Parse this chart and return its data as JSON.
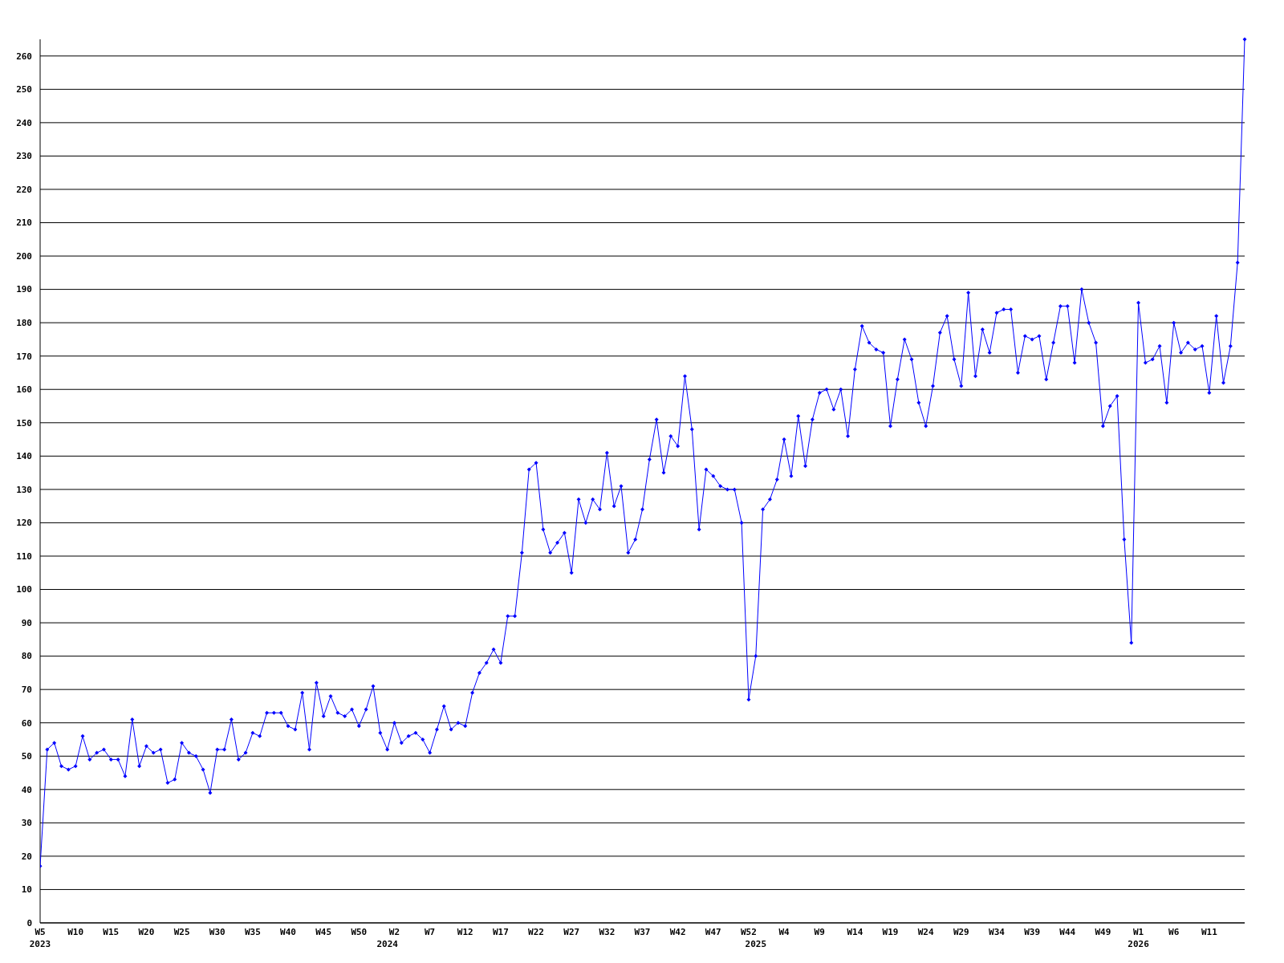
{
  "chart_data": {
    "type": "line",
    "categories": [
      "W5\n2023",
      null,
      null,
      null,
      null,
      "W10",
      null,
      null,
      null,
      null,
      "W15",
      null,
      null,
      null,
      null,
      "W20",
      null,
      null,
      null,
      null,
      "W25",
      null,
      null,
      null,
      null,
      "W30",
      null,
      null,
      null,
      null,
      "W35",
      null,
      null,
      null,
      null,
      "W40",
      null,
      null,
      null,
      null,
      "W45",
      null,
      null,
      null,
      null,
      "W50",
      null,
      null,
      null,
      "\n2024",
      "W2",
      null,
      null,
      null,
      null,
      "W7",
      null,
      null,
      null,
      null,
      "W12",
      null,
      null,
      null,
      null,
      "W17",
      null,
      null,
      null,
      null,
      "W22",
      null,
      null,
      null,
      null,
      "W27",
      null,
      null,
      null,
      null,
      "W32",
      null,
      null,
      null,
      null,
      "W37",
      null,
      null,
      null,
      null,
      "W42",
      null,
      null,
      null,
      null,
      "W47",
      null,
      null,
      null,
      null,
      "W52",
      "\n2025",
      null,
      null,
      null,
      "W4",
      null,
      null,
      null,
      null,
      "W9",
      null,
      null,
      null,
      null,
      "W14",
      null,
      null,
      null,
      null,
      "W19",
      null,
      null,
      null,
      null,
      "W24",
      null,
      null,
      null,
      null,
      "W29",
      null,
      null,
      null,
      null,
      "W34",
      null,
      null,
      null,
      null,
      "W39",
      null,
      null,
      null,
      null,
      "W44",
      null,
      null,
      null,
      null,
      "W49",
      null,
      null,
      null,
      null,
      "W1\n2026",
      null,
      null,
      null,
      null,
      "W6",
      null,
      null,
      null,
      null,
      "W11",
      null,
      null,
      null,
      null,
      null
    ],
    "series": [
      {
        "color": "#0000ff",
        "values": [
          17,
          52,
          54,
          47,
          46,
          47,
          56,
          49,
          51,
          52,
          49,
          49,
          44,
          61,
          47,
          53,
          51,
          52,
          42,
          43,
          54,
          51,
          50,
          46,
          39,
          52,
          52,
          61,
          49,
          51,
          57,
          56,
          63,
          63,
          63,
          59,
          58,
          69,
          52,
          72,
          62,
          68,
          63,
          62,
          64,
          59,
          64,
          71,
          57,
          52,
          60,
          54,
          56,
          57,
          55,
          51,
          58,
          65,
          58,
          60,
          59,
          69,
          75,
          78,
          82,
          78,
          92,
          92,
          111,
          136,
          138,
          118,
          111,
          114,
          117,
          105,
          127,
          120,
          127,
          124,
          141,
          125,
          131,
          111,
          115,
          124,
          139,
          151,
          135,
          146,
          143,
          164,
          148,
          118,
          136,
          134,
          131,
          130,
          130,
          120,
          67,
          80,
          124,
          127,
          133,
          145,
          134,
          152,
          137,
          151,
          159,
          160,
          154,
          160,
          146,
          166,
          179,
          174,
          172,
          171,
          149,
          163,
          175,
          169,
          156,
          149,
          161,
          177,
          182,
          169,
          161,
          189,
          164,
          178,
          171,
          183,
          184,
          184,
          165,
          176,
          175,
          176,
          163,
          174,
          185,
          185,
          168,
          190,
          180,
          174,
          149,
          155,
          158,
          115,
          84,
          186,
          168,
          169,
          173,
          156,
          180,
          171,
          174,
          172,
          173,
          159,
          182,
          162,
          173,
          198,
          265
        ]
      }
    ],
    "ylim": [
      0,
      265
    ],
    "yticks": [
      0,
      10,
      20,
      30,
      40,
      50,
      60,
      70,
      80,
      90,
      100,
      110,
      120,
      130,
      140,
      150,
      160,
      170,
      180,
      190,
      200,
      210,
      220,
      230,
      240,
      250,
      260
    ],
    "grid": "y",
    "marker": "diamond",
    "line_style": "solid"
  }
}
